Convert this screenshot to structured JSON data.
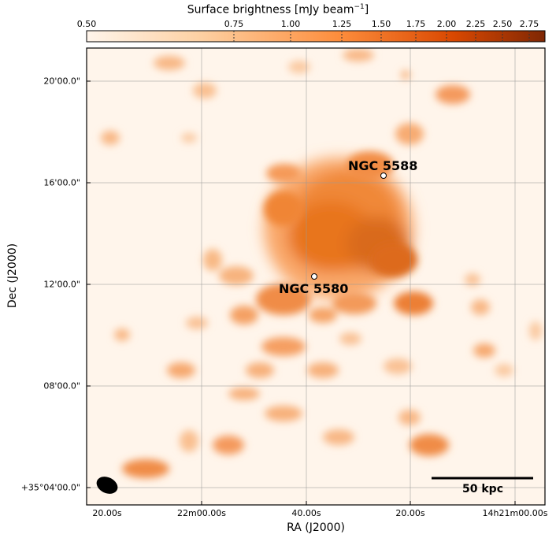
{
  "colorbar": {
    "label": "Surface brightness [mJy beam",
    "label_sup": "−1",
    "label_end": "]",
    "ticks": [
      "0.50",
      "0.75",
      "1.00",
      "1.25",
      "1.50",
      "1.75",
      "2.00",
      "2.25",
      "2.50",
      "2.75"
    ],
    "colors": [
      "#fff5eb",
      "#fdd0a2",
      "#fd8d3c",
      "#d94801",
      "#7f2704"
    ]
  },
  "axes": {
    "xlabel": "RA (J2000)",
    "ylabel": "Dec (J2000)",
    "xticks": [
      "20.00s",
      "22m00.00s",
      "40.00s",
      "20.00s",
      "14h21m00.00s"
    ],
    "yticks": [
      "20'00.0\"",
      "16'00.0\"",
      "12'00.0\"",
      "08'00.0\"",
      "+35°04'00.0\""
    ]
  },
  "sources": [
    {
      "name": "NGC 5588"
    },
    {
      "name": "NGC 5580"
    }
  ],
  "scalebar": {
    "label": "50 kpc"
  }
}
